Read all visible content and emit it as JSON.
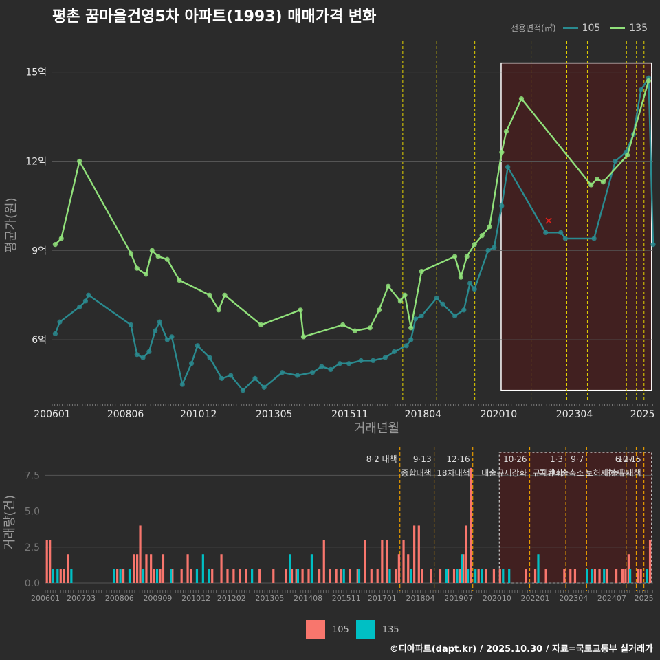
{
  "title": "평촌 꿈마을건영5차 아파트(1993) 매매가격 변화",
  "credit": "©디아파트(dapt.kr) / 2025.10.30 / 자료=국토교통부 실거래가",
  "legend": {
    "title": "전용면적(㎡)",
    "items": [
      {
        "name": "105",
        "color": "#2a8a8f"
      },
      {
        "name": "135",
        "color": "#90e07a"
      }
    ],
    "bar_items": [
      {
        "name": "105",
        "color": "#f8766d"
      },
      {
        "name": "135",
        "color": "#00bfc4"
      }
    ]
  },
  "chart_data": [
    {
      "type": "line",
      "title": "평촌 꿈마을건영5차 아파트(1993) 매매가격 변화",
      "xlabel": "거래년월",
      "ylabel": "평균가(원)",
      "x_range": [
        2006.0,
        2025.85
      ],
      "ylim": [
        3.9,
        15.8
      ],
      "yticks": [
        {
          "v": 6,
          "label": "6억"
        },
        {
          "v": 9,
          "label": "9억"
        },
        {
          "v": 12,
          "label": "12억"
        },
        {
          "v": 15,
          "label": "15억"
        }
      ],
      "xticks": [
        {
          "v": 2006.0,
          "label": "200601"
        },
        {
          "v": 2008.42,
          "label": "200806"
        },
        {
          "v": 2010.83,
          "label": "201012"
        },
        {
          "v": 2013.33,
          "label": "201305"
        },
        {
          "v": 2015.83,
          "label": "201511"
        },
        {
          "v": 2018.25,
          "label": "201804"
        },
        {
          "v": 2020.75,
          "label": "202010"
        },
        {
          "v": 2023.25,
          "label": "202304"
        },
        {
          "v": 2025.5,
          "label": "2025"
        }
      ],
      "policy_lines": [
        2017.58,
        2018.7,
        2019.96,
        2021.82,
        2023.0,
        2023.68,
        2024.97,
        2025.3,
        2025.55
      ],
      "highlight_x": [
        2020.83,
        2025.8
      ],
      "highlight_y": [
        4.3,
        15.3
      ],
      "outlier": {
        "x": 2022.4,
        "y": 10.0
      },
      "series": [
        {
          "name": "105",
          "color": "#2a8a8f",
          "x": [
            2006.1,
            2006.25,
            2006.9,
            2007.1,
            2007.2,
            2008.6,
            2008.8,
            2009.0,
            2009.2,
            2009.4,
            2009.55,
            2009.8,
            2009.95,
            2010.3,
            2010.6,
            2010.8,
            2011.2,
            2011.6,
            2011.9,
            2012.3,
            2012.7,
            2013.0,
            2013.6,
            2014.1,
            2014.6,
            2014.9,
            2015.2,
            2015.5,
            2015.8,
            2016.2,
            2016.6,
            2017.0,
            2017.3,
            2017.7,
            2017.85,
            2018.0,
            2018.2,
            2018.7,
            2018.9,
            2019.3,
            2019.6,
            2019.8,
            2019.95,
            2020.4,
            2020.6,
            2020.85,
            2021.05,
            2022.3,
            2022.8,
            2022.95,
            2023.9,
            2024.6,
            2024.95,
            2025.2,
            2025.45,
            2025.7,
            2025.85
          ],
          "y": [
            6.2,
            6.6,
            7.1,
            7.3,
            7.5,
            6.5,
            5.5,
            5.4,
            5.6,
            6.3,
            6.6,
            6.0,
            6.1,
            4.5,
            5.2,
            5.8,
            5.4,
            4.7,
            4.8,
            4.3,
            4.7,
            4.4,
            4.9,
            4.8,
            4.9,
            5.1,
            5.0,
            5.2,
            5.2,
            5.3,
            5.3,
            5.4,
            5.6,
            5.8,
            6.0,
            6.7,
            6.8,
            7.4,
            7.2,
            6.8,
            7.0,
            7.9,
            7.7,
            9.0,
            9.1,
            10.5,
            11.8,
            9.6,
            9.6,
            9.4,
            9.4,
            12.0,
            12.3,
            12.9,
            14.4,
            14.8,
            9.2
          ]
        },
        {
          "name": "135",
          "color": "#90e07a",
          "x": [
            2006.1,
            2006.3,
            2006.9,
            2008.6,
            2008.8,
            2009.1,
            2009.3,
            2009.5,
            2009.8,
            2010.2,
            2011.2,
            2011.5,
            2011.7,
            2012.9,
            2014.2,
            2014.3,
            2015.6,
            2016.0,
            2016.5,
            2016.8,
            2017.1,
            2017.5,
            2017.65,
            2017.85,
            2018.2,
            2019.3,
            2019.5,
            2019.7,
            2019.95,
            2020.2,
            2020.45,
            2020.85,
            2021.0,
            2021.5,
            2023.8,
            2024.0,
            2024.2,
            2025.0,
            2025.7
          ],
          "y": [
            9.2,
            9.4,
            12.0,
            8.9,
            8.4,
            8.2,
            9.0,
            8.8,
            8.7,
            8.0,
            7.5,
            7.0,
            7.5,
            6.5,
            7.0,
            6.1,
            6.5,
            6.3,
            6.4,
            7.0,
            7.8,
            7.3,
            7.5,
            6.4,
            8.3,
            8.8,
            8.1,
            8.8,
            9.2,
            9.5,
            9.8,
            12.3,
            13.0,
            14.1,
            11.2,
            11.4,
            11.3,
            12.2,
            14.7
          ]
        }
      ]
    },
    {
      "type": "bar",
      "ylabel": "거래량(건)",
      "ylim": [
        0,
        9
      ],
      "yticks": [
        {
          "v": 0,
          "label": "0.0"
        },
        {
          "v": 2.5,
          "label": "2.5"
        },
        {
          "v": 5.0,
          "label": "5.0"
        },
        {
          "v": 7.5,
          "label": "7.5"
        }
      ],
      "x_range": [
        2006.0,
        2025.85
      ],
      "xticks": [
        {
          "v": 2006.0,
          "label": "200601"
        },
        {
          "v": 2007.17,
          "label": "200703"
        },
        {
          "v": 2008.42,
          "label": "200806"
        },
        {
          "v": 2009.67,
          "label": "200909"
        },
        {
          "v": 2010.92,
          "label": "201012"
        },
        {
          "v": 2012.08,
          "label": "201202"
        },
        {
          "v": 2013.33,
          "label": "201305"
        },
        {
          "v": 2014.58,
          "label": "201408"
        },
        {
          "v": 2015.83,
          "label": "201511"
        },
        {
          "v": 2017.0,
          "label": "201701"
        },
        {
          "v": 2018.25,
          "label": "201804"
        },
        {
          "v": 2019.5,
          "label": "201907"
        },
        {
          "v": 2020.75,
          "label": "202010"
        },
        {
          "v": 2022.0,
          "label": "202201"
        },
        {
          "v": 2023.25,
          "label": "202304"
        },
        {
          "v": 2024.5,
          "label": "202407"
        },
        {
          "v": 2025.55,
          "label": "2025"
        }
      ],
      "policy_lines": [
        2017.58,
        2018.7,
        2019.96,
        2021.82,
        2023.0,
        2023.68,
        2024.97,
        2025.3,
        2025.55
      ],
      "annotations": [
        {
          "x": 2017.58,
          "line1": "8·2 대책",
          "line2": ""
        },
        {
          "x": 2018.7,
          "line1": "9·13",
          "line2": "종합대책"
        },
        {
          "x": 2019.96,
          "line1": "12·16",
          "line2": "18차대책"
        },
        {
          "x": 2021.82,
          "line1": "10·26",
          "line2": "대출규제강화"
        },
        {
          "x": 2023.0,
          "line1": "1·3",
          "line2": "규제완화"
        },
        {
          "x": 2023.68,
          "line1": "9·7",
          "line2": "특례대출축소"
        },
        {
          "x": 2024.97,
          "line1": "",
          "line2": "토허제해제"
        },
        {
          "x": 2025.3,
          "line1": "6·27",
          "line2": "대출규제"
        },
        {
          "x": 2025.55,
          "line1": "10·15",
          "line2": "대책"
        }
      ],
      "series": [
        {
          "name": "105",
          "color": "#f8766d",
          "x": [
            2006.05,
            2006.15,
            2006.5,
            2006.6,
            2006.75,
            2008.35,
            2008.55,
            2008.9,
            2009.0,
            2009.1,
            2009.3,
            2009.45,
            2009.55,
            2009.75,
            2009.85,
            2010.15,
            2010.45,
            2010.65,
            2010.75,
            2011.45,
            2011.75,
            2011.95,
            2012.15,
            2012.35,
            2012.55,
            2013.0,
            2013.45,
            2013.85,
            2014.05,
            2014.2,
            2014.4,
            2014.6,
            2014.95,
            2015.1,
            2015.3,
            2015.5,
            2015.65,
            2015.95,
            2016.2,
            2016.45,
            2016.65,
            2016.85,
            2017.0,
            2017.15,
            2017.45,
            2017.55,
            2017.7,
            2017.85,
            2018.05,
            2018.2,
            2018.3,
            2018.6,
            2018.9,
            2019.15,
            2019.35,
            2019.55,
            2019.65,
            2019.75,
            2019.9,
            2020.15,
            2020.4,
            2020.65,
            2020.85,
            2021.7,
            2022.0,
            2022.35,
            2022.95,
            2023.15,
            2023.3,
            2023.95,
            2024.1,
            2024.35,
            2024.65,
            2024.85,
            2024.95,
            2025.05,
            2025.35,
            2025.45,
            2025.75
          ],
          "y": [
            3,
            3,
            1,
            1,
            2,
            1,
            1,
            2,
            2,
            4,
            2,
            2,
            1,
            1,
            2,
            1,
            1,
            2,
            1,
            1,
            2,
            1,
            1,
            1,
            1,
            1,
            1,
            1,
            1,
            1,
            1,
            1,
            1,
            3,
            1,
            1,
            1,
            1,
            1,
            3,
            1,
            1,
            3,
            3,
            1,
            2,
            3,
            2,
            4,
            4,
            1,
            1,
            1,
            1,
            1,
            1,
            2,
            4,
            8,
            1,
            1,
            1,
            1,
            1,
            1,
            1,
            1,
            1,
            1,
            1,
            1,
            1,
            1,
            1,
            1,
            2,
            1,
            1,
            3
          ]
        },
        {
          "name": "135",
          "color": "#00bfc4",
          "x": [
            2006.25,
            2006.4,
            2006.85,
            2008.25,
            2008.45,
            2008.75,
            2009.2,
            2009.65,
            2010.1,
            2010.95,
            2011.15,
            2011.35,
            2012.75,
            2014.0,
            2014.25,
            2014.7,
            2015.75,
            2016.25,
            2017.25,
            2017.95,
            2019.1,
            2019.45,
            2019.6,
            2019.8,
            2020.05,
            2020.25,
            2020.95,
            2021.15,
            2022.1,
            2023.7,
            2023.85,
            2024.25,
            2025.1,
            2025.65
          ],
          "y": [
            1,
            1,
            1,
            1,
            1,
            1,
            1,
            1,
            1,
            1,
            2,
            1,
            1,
            2,
            1,
            2,
            1,
            1,
            1,
            1,
            1,
            1,
            2,
            1,
            1,
            1,
            1,
            1,
            2,
            1,
            1,
            1,
            1,
            1
          ]
        }
      ]
    }
  ]
}
